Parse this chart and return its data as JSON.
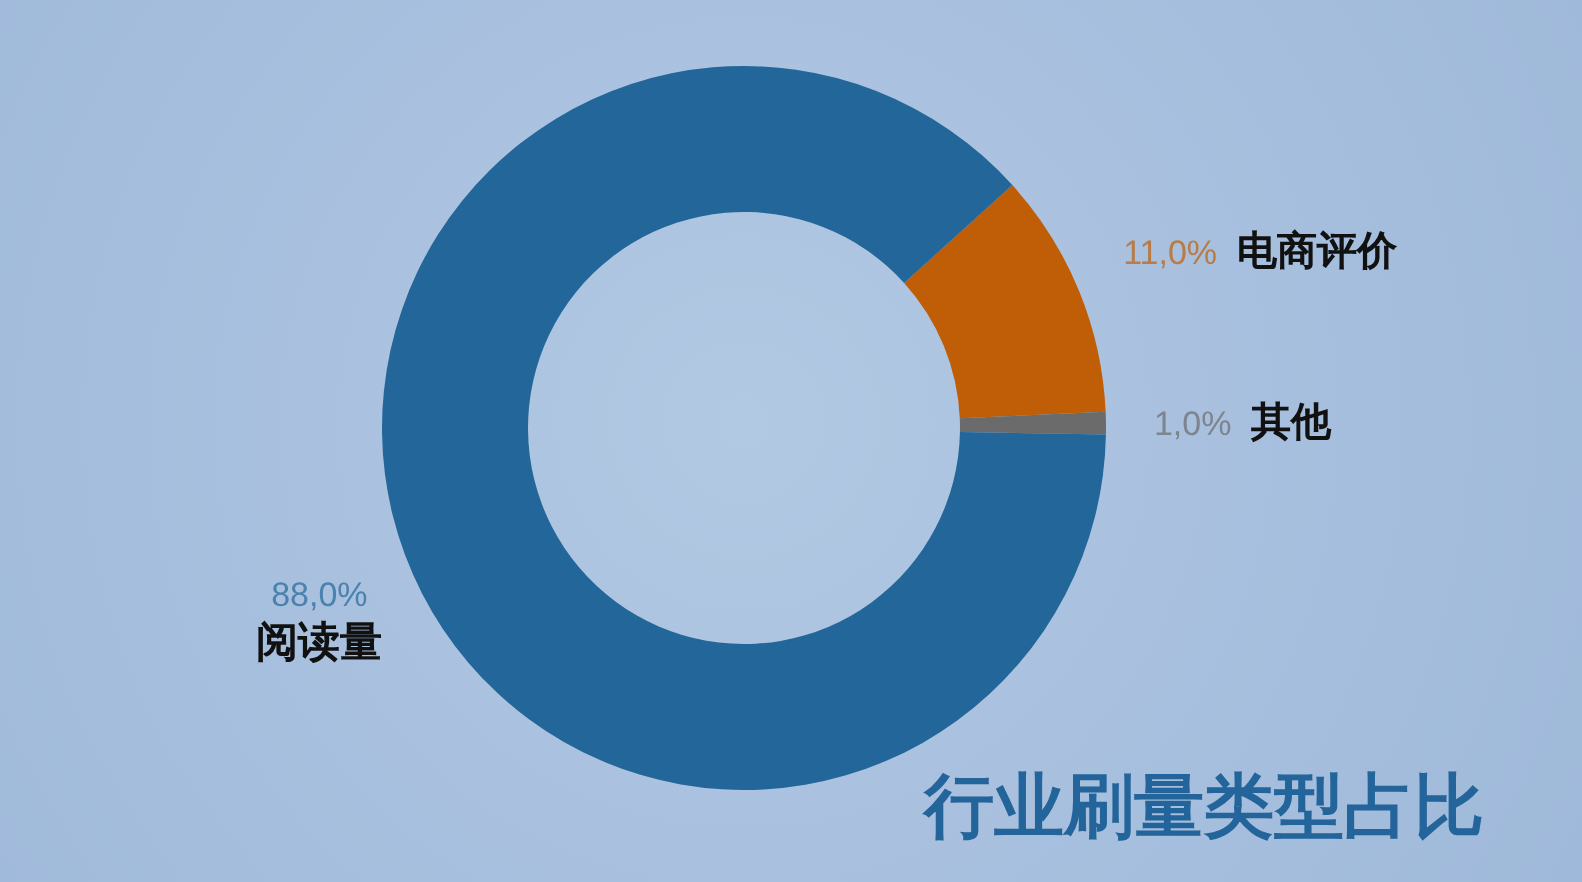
{
  "chart_data": {
    "type": "donut",
    "title": "行业刷量类型占比",
    "categories": [
      "电商评价",
      "其他",
      "阅读量"
    ],
    "values": [
      11,
      1,
      88
    ],
    "colors": [
      "#bf5e06",
      "#6b6b6b",
      "#236699"
    ],
    "value_labels": [
      "11,0%",
      "1,0%",
      "88,0%"
    ]
  }
}
